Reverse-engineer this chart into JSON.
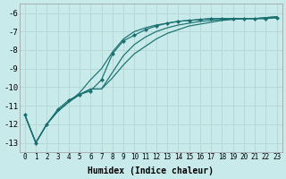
{
  "xlabel": "Humidex (Indice chaleur)",
  "ylabel": "",
  "background_color": "#c8eaea",
  "grid_color": "#b8d8d8",
  "line_color": "#1a7070",
  "xlim": [
    -0.5,
    23.5
  ],
  "ylim": [
    -13.5,
    -5.5
  ],
  "xticks": [
    0,
    1,
    2,
    3,
    4,
    5,
    6,
    7,
    8,
    9,
    10,
    11,
    12,
    13,
    14,
    15,
    16,
    17,
    18,
    19,
    20,
    21,
    22,
    23
  ],
  "yticks": [
    -13,
    -12,
    -11,
    -10,
    -9,
    -8,
    -7,
    -6
  ],
  "lines": [
    {
      "x": [
        0,
        1,
        2,
        3,
        4,
        5,
        6,
        7,
        8,
        9,
        10,
        11,
        12,
        13,
        14,
        15,
        16,
        17,
        18,
        19,
        20,
        21,
        22,
        23
      ],
      "y": [
        -11.5,
        -13.0,
        -12.0,
        -11.2,
        -10.7,
        -10.4,
        -10.2,
        -9.6,
        -8.2,
        -7.5,
        -7.2,
        -6.9,
        -6.7,
        -6.55,
        -6.45,
        -6.4,
        -6.35,
        -6.3,
        -6.3,
        -6.3,
        -6.3,
        -6.3,
        -6.3,
        -6.25
      ],
      "marker": "D",
      "markersize": 2.0
    },
    {
      "x": [
        0,
        1,
        2,
        3,
        4,
        5,
        6,
        7,
        8,
        9,
        10,
        11,
        12,
        13,
        14,
        15,
        16,
        17,
        18,
        19,
        20,
        21,
        22,
        23
      ],
      "y": [
        -11.5,
        -13.0,
        -12.0,
        -11.3,
        -10.8,
        -10.4,
        -10.1,
        -10.1,
        -9.5,
        -8.8,
        -8.2,
        -7.8,
        -7.4,
        -7.1,
        -6.9,
        -6.7,
        -6.6,
        -6.5,
        -6.4,
        -6.35,
        -6.3,
        -6.3,
        -6.25,
        -6.2
      ],
      "marker": null
    },
    {
      "x": [
        0,
        1,
        2,
        3,
        4,
        5,
        6,
        7,
        8,
        9,
        10,
        11,
        12,
        13,
        14,
        15,
        16,
        17,
        18,
        19,
        20,
        21,
        22,
        23
      ],
      "y": [
        -11.5,
        -13.0,
        -12.0,
        -11.3,
        -10.8,
        -10.4,
        -10.1,
        -10.1,
        -9.2,
        -8.3,
        -7.7,
        -7.3,
        -7.0,
        -6.8,
        -6.65,
        -6.55,
        -6.45,
        -6.4,
        -6.35,
        -6.3,
        -6.3,
        -6.3,
        -6.3,
        -6.25
      ],
      "marker": null
    },
    {
      "x": [
        0,
        1,
        2,
        3,
        4,
        5,
        6,
        7,
        8,
        9,
        10,
        11,
        12,
        13,
        14,
        15,
        16,
        17,
        18,
        19,
        20,
        21,
        22,
        23
      ],
      "y": [
        -11.5,
        -13.0,
        -12.0,
        -11.3,
        -10.8,
        -10.3,
        -9.6,
        -9.0,
        -8.1,
        -7.4,
        -7.0,
        -6.8,
        -6.65,
        -6.55,
        -6.45,
        -6.4,
        -6.35,
        -6.3,
        -6.3,
        -6.3,
        -6.3,
        -6.3,
        -6.25,
        -6.2
      ],
      "marker": null
    }
  ]
}
